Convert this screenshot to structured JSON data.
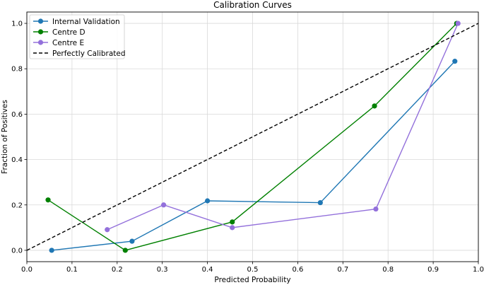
{
  "chart_data": {
    "type": "line",
    "title": "Calibration Curves",
    "xlabel": "Predicted Probability",
    "ylabel": "Fraction of Positives",
    "xlim": [
      0.0,
      1.0
    ],
    "ylim": [
      -0.05,
      1.05
    ],
    "xticks": [
      0.0,
      0.1,
      0.2,
      0.3,
      0.4,
      0.5,
      0.6,
      0.7,
      0.8,
      0.9,
      1.0
    ],
    "xtick_labels": [
      "0.0",
      "0.1",
      "0.2",
      "0.3",
      "0.4",
      "0.5",
      "0.6",
      "0.7",
      "0.8",
      "0.9",
      "1.0"
    ],
    "yticks": [
      0.0,
      0.2,
      0.4,
      0.6,
      0.8,
      1.0
    ],
    "ytick_labels": [
      "0.0",
      "0.2",
      "0.4",
      "0.6",
      "0.8",
      "1.0"
    ],
    "grid": true,
    "legend_position": "top-left",
    "series": [
      {
        "name": "Internal Validation",
        "color": "#1f77b4",
        "marker": "circle",
        "style": "solid",
        "x": [
          0.055,
          0.233,
          0.4,
          0.65,
          0.948
        ],
        "y": [
          0.0,
          0.04,
          0.218,
          0.21,
          0.833
        ]
      },
      {
        "name": "Centre D",
        "color": "#008000",
        "marker": "circle",
        "style": "solid",
        "x": [
          0.047,
          0.218,
          0.455,
          0.77,
          0.952
        ],
        "y": [
          0.222,
          0.0,
          0.125,
          0.636,
          1.0
        ]
      },
      {
        "name": "Centre E",
        "color": "#9370db",
        "marker": "circle",
        "style": "solid",
        "x": [
          0.178,
          0.303,
          0.455,
          0.773,
          0.955
        ],
        "y": [
          0.091,
          0.2,
          0.1,
          0.182,
          1.0
        ]
      },
      {
        "name": "Perfectly Calibrated",
        "color": "#000000",
        "marker": "none",
        "style": "dashed",
        "x": [
          0.0,
          1.0
        ],
        "y": [
          0.0,
          1.0
        ]
      }
    ]
  }
}
